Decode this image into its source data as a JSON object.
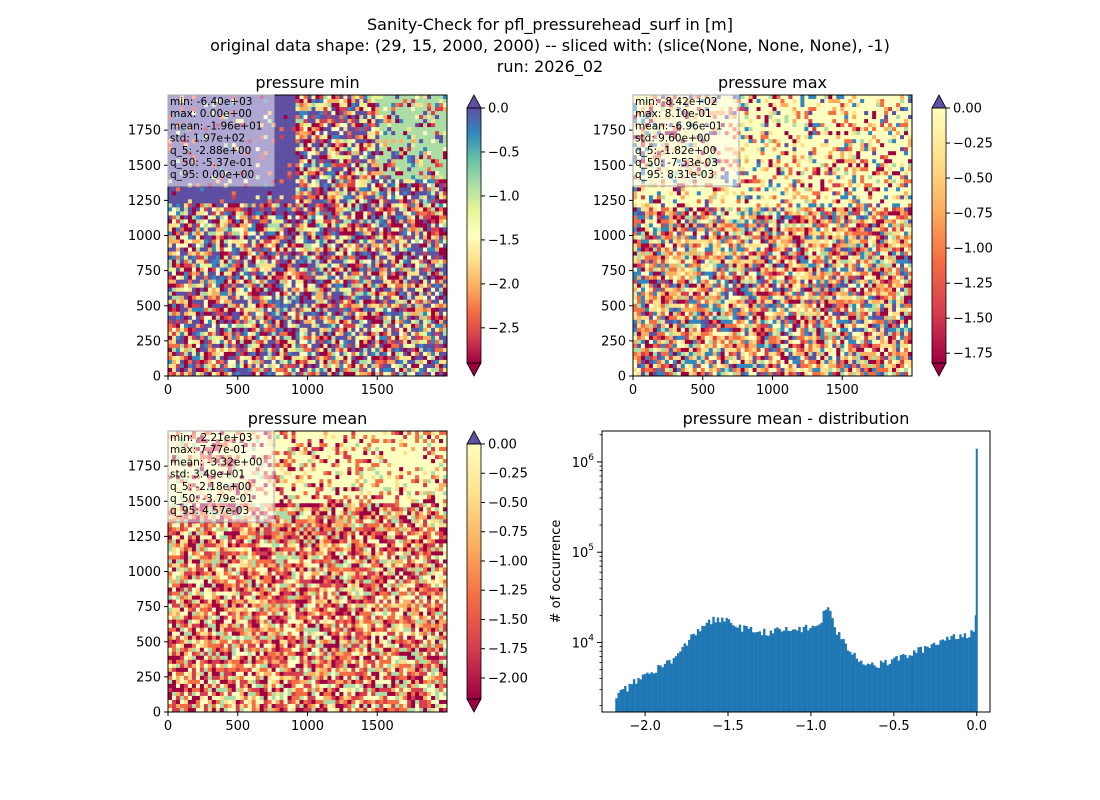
{
  "figure": {
    "suptitle_lines": [
      "Sanity-Check for pfl_pressurehead_surf in [m]",
      "original data shape: (29, 15, 2000, 2000) -- sliced with: (slice(None, None, None), -1)",
      "run: 2026_02"
    ]
  },
  "chart_data": [
    {
      "type": "heatmap",
      "title": "pressure min",
      "colormap": "Spectral",
      "xlim": [
        0,
        2000
      ],
      "ylim": [
        0,
        2000
      ],
      "xticks": [
        "0",
        "500",
        "1000",
        "1500"
      ],
      "yticks": [
        "0",
        "250",
        "500",
        "750",
        "1000",
        "1250",
        "1500",
        "1750"
      ],
      "colorbar": {
        "range": [
          -2.9,
          0.0
        ],
        "ticks": [
          "0.0",
          "−0.5",
          "−1.0",
          "−1.5",
          "−2.0",
          "−2.5"
        ],
        "extend": "both"
      },
      "stats": [
        "min: -6.40e+03",
        "max: 0.00e+00",
        "mean: -1.96e+01",
        "std: 1.97e+02",
        "q_5: -2.88e+00",
        "q_50: -5.37e-01",
        "q_95: 0.00e+00"
      ]
    },
    {
      "type": "heatmap",
      "title": "pressure max",
      "colormap": "Spectral",
      "xlim": [
        0,
        2000
      ],
      "ylim": [
        0,
        2000
      ],
      "xticks": [
        "0",
        "500",
        "1000",
        "1500"
      ],
      "yticks": [
        "0",
        "250",
        "500",
        "750",
        "1000",
        "1250",
        "1500",
        "1750"
      ],
      "colorbar": {
        "range": [
          -1.82,
          0.0
        ],
        "ticks": [
          "0.00",
          "−0.25",
          "−0.50",
          "−0.75",
          "−1.00",
          "−1.25",
          "−1.50",
          "−1.75"
        ],
        "extend": "both"
      },
      "stats": [
        "min: -8.42e+02",
        "max: 8.10e-01",
        "mean: -6.96e-01",
        "std: 9.60e+00",
        "q_5: -1.82e+00",
        "q_50: -7.53e-03",
        "q_95: 8.31e-03"
      ]
    },
    {
      "type": "heatmap",
      "title": "pressure mean",
      "colormap": "Spectral",
      "xlim": [
        0,
        2000
      ],
      "ylim": [
        0,
        2000
      ],
      "xticks": [
        "0",
        "500",
        "1000",
        "1500"
      ],
      "yticks": [
        "0",
        "250",
        "500",
        "750",
        "1000",
        "1250",
        "1500",
        "1750"
      ],
      "colorbar": {
        "range": [
          -2.18,
          0.0
        ],
        "ticks": [
          "0.00",
          "−0.25",
          "−0.50",
          "−0.75",
          "−1.00",
          "−1.25",
          "−1.50",
          "−1.75",
          "−2.00"
        ],
        "extend": "both"
      },
      "stats": [
        "min: -2.21e+03",
        "max: 7.77e-01",
        "mean: -3.32e+00",
        "std: 3.49e+01",
        "q_5: -2.18e+00",
        "q_50: -3.79e-01",
        "q_95: 4.57e-03"
      ]
    },
    {
      "type": "bar",
      "title": "pressure mean - distribution",
      "ylabel": "# of occurrence",
      "xlabel": "",
      "yscale": "log",
      "xlim": [
        -2.26,
        0.08
      ],
      "ylim": [
        1700,
        2200000
      ],
      "xticks": [
        "−2.0",
        "−1.5",
        "−1.0",
        "−0.5",
        "0.0"
      ],
      "yticks": [
        "10^4",
        "10^5",
        "10^6"
      ],
      "bar_color": "#1f77b4",
      "x": [
        -2.18,
        -2.08,
        -2.0,
        -1.9,
        -1.8,
        -1.72,
        -1.65,
        -1.58,
        -1.5,
        -1.4,
        -1.3,
        -1.2,
        -1.1,
        -1.0,
        -0.95,
        -0.92,
        -0.88,
        -0.85,
        -0.8,
        -0.75,
        -0.7,
        -0.65,
        -0.6,
        -0.55,
        -0.5,
        -0.4,
        -0.3,
        -0.2,
        -0.12,
        -0.05,
        -0.02,
        -0.01,
        0.0
      ],
      "values": [
        2600,
        3500,
        4500,
        5500,
        7500,
        12000,
        16000,
        18000,
        17000,
        14000,
        13000,
        13500,
        14000,
        14500,
        16000,
        25000,
        20000,
        13000,
        9500,
        7500,
        6300,
        5800,
        5600,
        6000,
        6500,
        7500,
        9000,
        11000,
        12000,
        12500,
        14000,
        20000,
        1400000
      ]
    }
  ]
}
